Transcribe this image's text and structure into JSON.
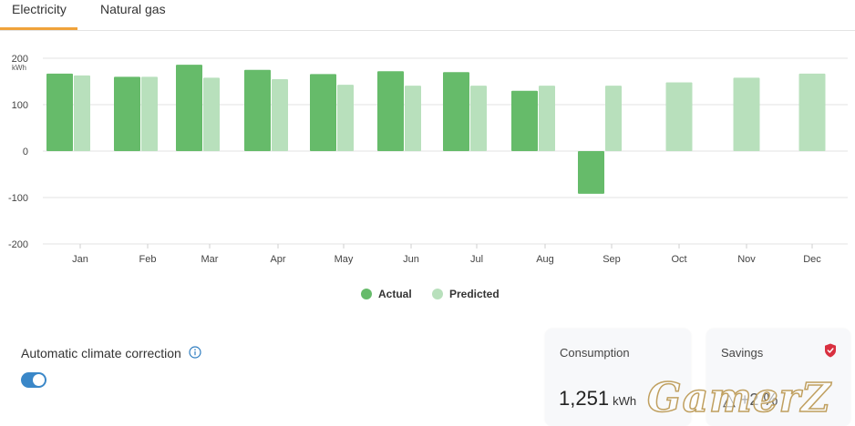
{
  "tabs": [
    {
      "label": "Electricity",
      "active": true
    },
    {
      "label": "Natural gas",
      "active": false
    }
  ],
  "chart_data": {
    "type": "bar",
    "categories": [
      "Jan",
      "Feb",
      "Mar",
      "Apr",
      "May",
      "Jun",
      "Jul",
      "Aug",
      "Sep",
      "Oct",
      "Nov",
      "Dec"
    ],
    "series": [
      {
        "name": "Actual",
        "color": "#66bb6a",
        "values": [
          167,
          160,
          186,
          175,
          166,
          172,
          170,
          130,
          -92,
          null,
          null,
          null
        ]
      },
      {
        "name": "Predicted",
        "color": "#b8e0bc",
        "values": [
          163,
          160,
          158,
          155,
          143,
          141,
          141,
          141,
          141,
          148,
          158,
          167
        ]
      }
    ],
    "ylim": [
      -200,
      200
    ],
    "yticks": [
      -200,
      -100,
      0,
      100,
      200
    ],
    "ylabel": "kWh",
    "grid": true,
    "legend_position": "bottom-center"
  },
  "climate_correction": {
    "label": "Automatic climate correction",
    "enabled": true,
    "info_icon": "info-icon"
  },
  "cards": {
    "consumption": {
      "title": "Consumption",
      "value": "1,251",
      "unit": "kWh"
    },
    "savings": {
      "title": "Savings",
      "value": "△ +2 %",
      "icon": "shield-icon",
      "icon_color": "#d93040"
    }
  },
  "watermark": "GamerZ"
}
